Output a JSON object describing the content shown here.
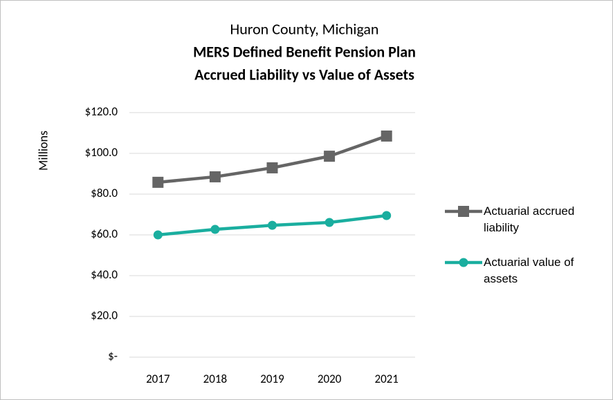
{
  "chart_data": {
    "type": "line",
    "title": "Huron County, Michigan",
    "subtitle": [
      "MERS Defined Benefit Pension Plan",
      "Accrued Liability vs Value of Assets"
    ],
    "y_label": "Millions",
    "categories": [
      "2017",
      "2018",
      "2019",
      "2020",
      "2021"
    ],
    "series": [
      {
        "name": "Actuarial accrued liability",
        "color": "#656565",
        "marker": "square",
        "values": [
          85.8,
          88.5,
          92.9,
          98.6,
          108.5
        ]
      },
      {
        "name": "Actuarial value of assets",
        "color": "#1aae9f",
        "marker": "circle",
        "values": [
          60.0,
          62.7,
          64.7,
          66.1,
          69.5
        ]
      }
    ],
    "ylim": [
      0,
      120
    ],
    "yticks": [
      {
        "value": 0,
        "label": "$-"
      },
      {
        "value": 20,
        "label": "$20.0"
      },
      {
        "value": 40,
        "label": "$40.0"
      },
      {
        "value": 60,
        "label": "$60.0"
      },
      {
        "value": 80,
        "label": "$80.0"
      },
      {
        "value": 100,
        "label": "$100.0"
      },
      {
        "value": 120,
        "label": "$120.0"
      }
    ],
    "grid": true,
    "legend": "right"
  }
}
